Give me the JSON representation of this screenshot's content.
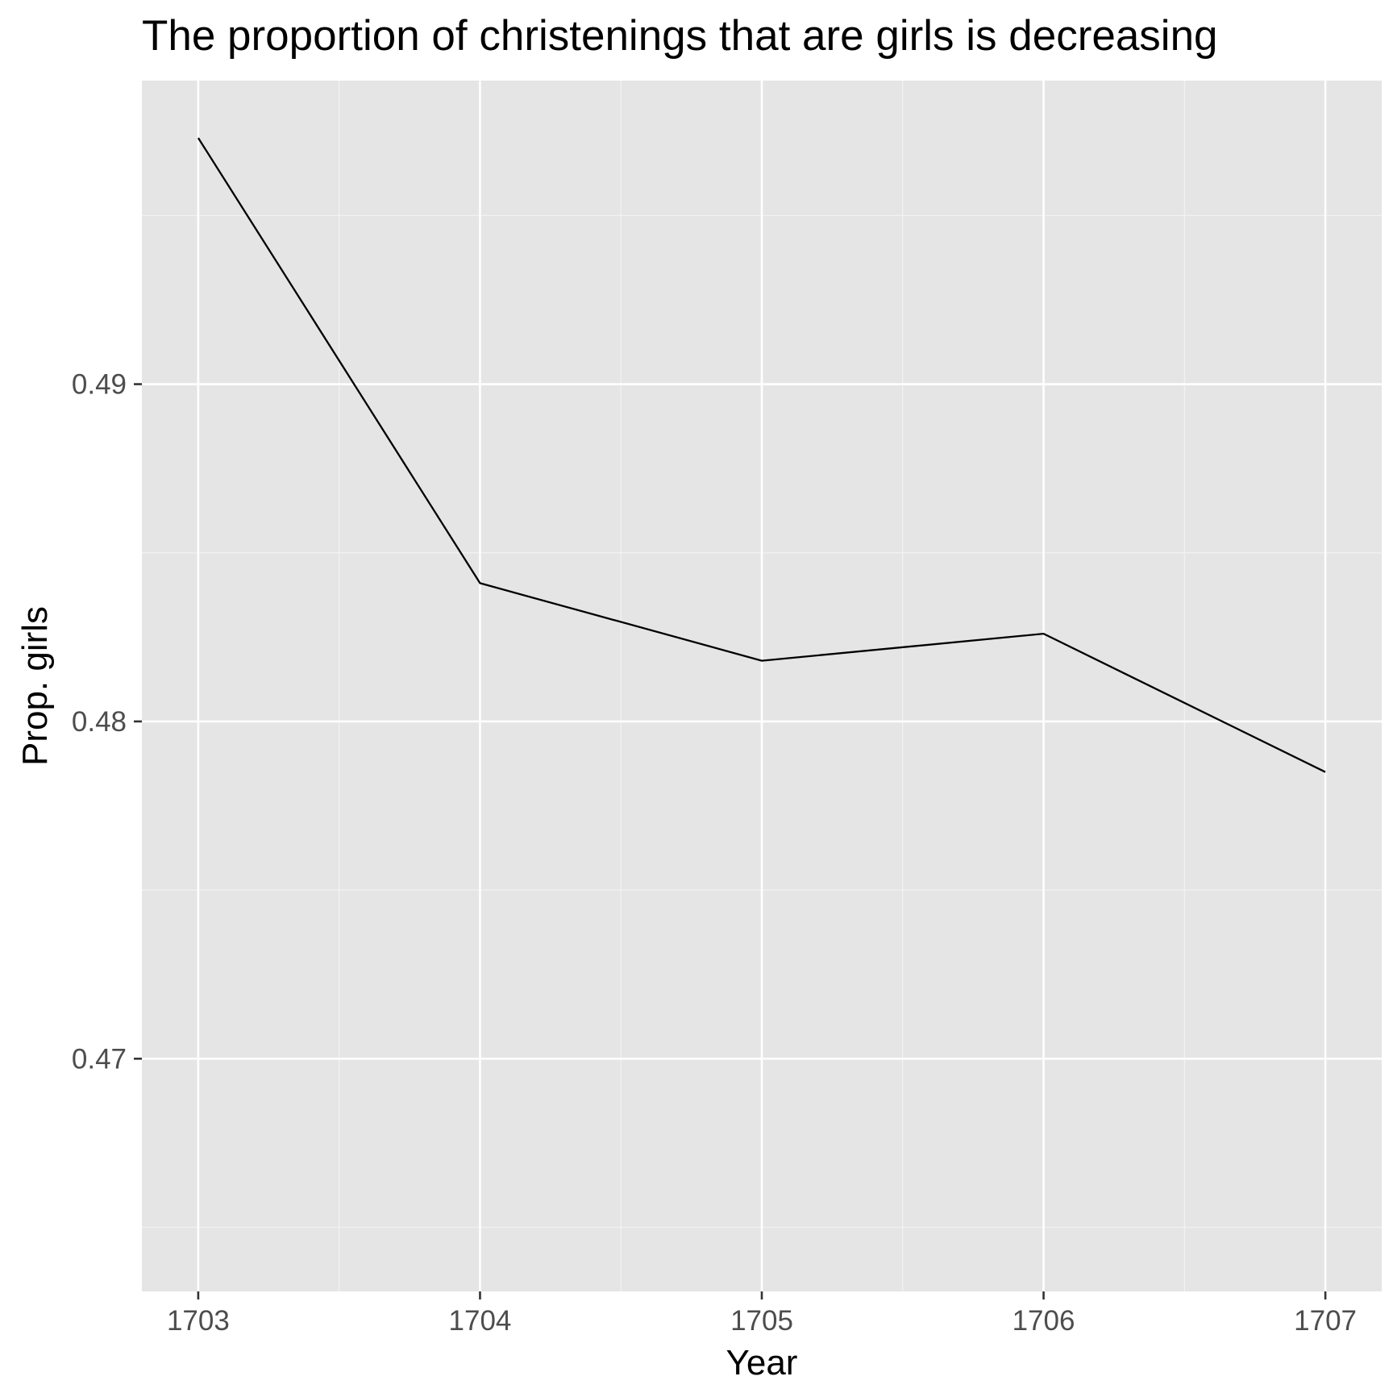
{
  "chart_data": {
    "type": "line",
    "title": "The proportion of christenings that are girls is decreasing",
    "xlabel": "Year",
    "ylabel": "Prop. girls",
    "x": [
      1703,
      1704,
      1705,
      1706,
      1707
    ],
    "series": [
      {
        "values": [
          0.4973,
          0.4841,
          0.4818,
          0.4826,
          0.4785
        ]
      }
    ],
    "x_ticks": [
      1703,
      1704,
      1705,
      1706,
      1707
    ],
    "x_tick_labels": [
      "1703",
      "1704",
      "1705",
      "1706",
      "1707"
    ],
    "y_ticks": [
      0.47,
      0.48,
      0.49
    ],
    "y_tick_labels": [
      "0.47",
      "0.48",
      "0.49"
    ],
    "xlim": [
      1702.8,
      1707.2
    ],
    "ylim": [
      0.4631,
      0.499
    ],
    "grid": true,
    "legend": "none",
    "colors": {
      "panel_background": "#e5e5e5",
      "grid_major": "#ffffff",
      "grid_minor": "#f2f2f2",
      "line": "#000000",
      "tick": "#333333",
      "tick_label": "#4d4d4d",
      "text": "#000000"
    }
  }
}
